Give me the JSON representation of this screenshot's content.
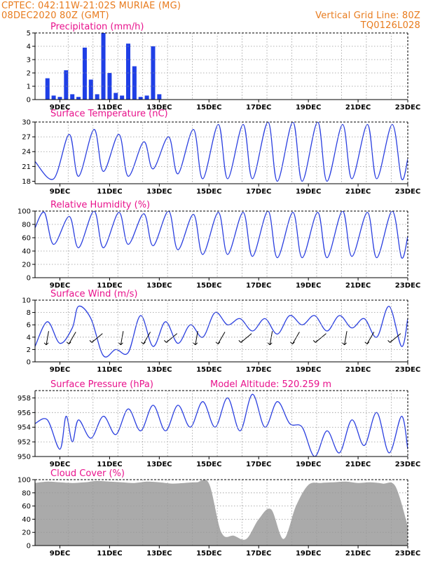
{
  "header": {
    "left_line1": "CPTEC:   042:11W-21:02S   MURIAE (MG)",
    "left_line2": "08DEC2020 80Z (GMT)",
    "right_line1": "Vertical Grid Line: 80Z",
    "right_line2": "TQ0126L028"
  },
  "colors": {
    "line": "#2a3fe0",
    "bar": "#1f3fe6",
    "cloud": "#aaaaaa",
    "title": "#e8128c",
    "header": "#e87b1d"
  },
  "chart_data": [
    {
      "type": "bar",
      "title": "Precipitation (mm/h)",
      "ylim": [
        0,
        5
      ],
      "yticks": [
        "0",
        "1",
        "2",
        "3",
        "4",
        "5"
      ],
      "xticks": [
        "9DEC",
        "11DEC",
        "13DEC",
        "15DEC",
        "17DEC",
        "19DEC",
        "21DEC",
        "23DEC"
      ],
      "x": [
        "08DEC 12Z",
        "08DEC 18Z",
        "09DEC 00Z",
        "09DEC 06Z",
        "09DEC 12Z",
        "09DEC 18Z",
        "10DEC 00Z",
        "10DEC 06Z",
        "10DEC 12Z",
        "10DEC 18Z",
        "11DEC 00Z",
        "11DEC 06Z",
        "11DEC 12Z",
        "11DEC 18Z",
        "12DEC 00Z",
        "12DEC 06Z",
        "12DEC 12Z",
        "12DEC 18Z",
        "13DEC 00Z",
        "13DEC 06Z"
      ],
      "values": [
        1.6,
        0.3,
        0.2,
        2.2,
        0.4,
        0.2,
        3.9,
        1.5,
        0.4,
        5.0,
        2.0,
        0.5,
        0.3,
        4.2,
        2.5,
        0.2,
        0.3,
        4.0,
        0.4,
        0.0
      ]
    },
    {
      "type": "line",
      "title": "Surface Temperature (nC)",
      "ylim": [
        17.5,
        30
      ],
      "yticks": [
        "18",
        "21",
        "24",
        "27",
        "30"
      ],
      "xticks": [
        "9DEC",
        "11DEC",
        "13DEC",
        "15DEC",
        "17DEC",
        "19DEC",
        "21DEC",
        "23DEC"
      ],
      "x": [
        "08DEC 00Z",
        "08DEC 18Z",
        "09DEC 09Z",
        "09DEC 18Z",
        "10DEC 09Z",
        "10DEC 18Z",
        "11DEC 09Z",
        "11DEC 18Z",
        "12DEC 09Z",
        "12DEC 18Z",
        "13DEC 09Z",
        "13DEC 18Z",
        "14DEC 09Z",
        "14DEC 18Z",
        "15DEC 09Z",
        "15DEC 18Z",
        "16DEC 09Z",
        "16DEC 18Z",
        "17DEC 09Z",
        "17DEC 18Z",
        "18DEC 09Z",
        "18DEC 18Z",
        "19DEC 09Z",
        "19DEC 18Z",
        "20DEC 09Z",
        "20DEC 18Z",
        "21DEC 09Z",
        "21DEC 18Z",
        "22DEC 09Z",
        "22DEC 18Z",
        "23DEC 00Z"
      ],
      "values": [
        22.0,
        18.5,
        27.5,
        19.0,
        28.5,
        20.0,
        27.5,
        19.0,
        26.0,
        20.5,
        27.0,
        19.5,
        28.5,
        18.5,
        29.5,
        18.5,
        29.5,
        18.5,
        30.0,
        18.0,
        30.0,
        18.0,
        30.0,
        18.0,
        29.5,
        18.5,
        29.5,
        18.5,
        29.5,
        18.5,
        22.5
      ]
    },
    {
      "type": "line",
      "title": "Relative Humidity (%)",
      "ylim": [
        0,
        100
      ],
      "yticks": [
        "0",
        "20",
        "40",
        "60",
        "80",
        "100"
      ],
      "xticks": [
        "9DEC",
        "11DEC",
        "13DEC",
        "15DEC",
        "17DEC",
        "19DEC",
        "21DEC",
        "23DEC"
      ],
      "x": [
        "08DEC 00Z",
        "08DEC 09Z",
        "08DEC 18Z",
        "09DEC 09Z",
        "09DEC 18Z",
        "10DEC 09Z",
        "10DEC 18Z",
        "11DEC 09Z",
        "11DEC 18Z",
        "12DEC 09Z",
        "12DEC 18Z",
        "13DEC 09Z",
        "13DEC 18Z",
        "14DEC 09Z",
        "14DEC 18Z",
        "15DEC 09Z",
        "15DEC 18Z",
        "16DEC 09Z",
        "16DEC 18Z",
        "17DEC 09Z",
        "17DEC 18Z",
        "18DEC 09Z",
        "18DEC 18Z",
        "19DEC 09Z",
        "19DEC 18Z",
        "20DEC 09Z",
        "20DEC 18Z",
        "21DEC 09Z",
        "21DEC 18Z",
        "22DEC 09Z",
        "22DEC 18Z",
        "23DEC 00Z"
      ],
      "values": [
        75,
        98,
        50,
        92,
        45,
        100,
        45,
        98,
        50,
        96,
        48,
        100,
        42,
        95,
        35,
        98,
        35,
        98,
        32,
        100,
        30,
        98,
        30,
        98,
        30,
        100,
        32,
        98,
        30,
        100,
        30,
        62
      ]
    },
    {
      "type": "line",
      "title": "Surface Wind (m/s)",
      "ylim": [
        0,
        10
      ],
      "yticks": [
        "0",
        "2",
        "4",
        "6",
        "8",
        "10"
      ],
      "xticks": [
        "9DEC",
        "11DEC",
        "13DEC",
        "15DEC",
        "17DEC",
        "19DEC",
        "21DEC",
        "23DEC"
      ],
      "x": [
        "08DEC 00Z",
        "08DEC 12Z",
        "09DEC 00Z",
        "09DEC 12Z",
        "09DEC 18Z",
        "10DEC 06Z",
        "10DEC 18Z",
        "11DEC 06Z",
        "11DEC 18Z",
        "12DEC 06Z",
        "12DEC 18Z",
        "13DEC 06Z",
        "13DEC 18Z",
        "14DEC 06Z",
        "14DEC 18Z",
        "15DEC 06Z",
        "15DEC 18Z",
        "16DEC 06Z",
        "16DEC 18Z",
        "17DEC 06Z",
        "17DEC 18Z",
        "18DEC 06Z",
        "18DEC 18Z",
        "19DEC 06Z",
        "19DEC 18Z",
        "20DEC 06Z",
        "20DEC 18Z",
        "21DEC 06Z",
        "21DEC 18Z",
        "22DEC 06Z",
        "22DEC 18Z",
        "23DEC 00Z"
      ],
      "values": [
        2.5,
        6.5,
        3.0,
        5.5,
        9.0,
        7.0,
        1.0,
        2.0,
        1.5,
        7.5,
        2.5,
        6.5,
        3.0,
        6.0,
        4.0,
        8.0,
        6.0,
        7.0,
        5.0,
        7.0,
        4.5,
        7.5,
        6.0,
        7.5,
        5.0,
        7.5,
        5.5,
        7.0,
        4.0,
        9.0,
        2.5,
        7.0
      ]
    },
    {
      "type": "line",
      "title": "Surface Pressure (hPa)",
      "subtitle": "Model Altitude: 520.259 m",
      "ylim": [
        950,
        959
      ],
      "yticks": [
        "950",
        "952",
        "954",
        "956",
        "958"
      ],
      "xticks": [
        "9DEC",
        "11DEC",
        "13DEC",
        "15DEC",
        "17DEC",
        "19DEC",
        "21DEC",
        "23DEC"
      ],
      "x": [
        "08DEC 00Z",
        "08DEC 12Z",
        "09DEC 00Z",
        "09DEC 06Z",
        "09DEC 12Z",
        "09DEC 18Z",
        "10DEC 06Z",
        "10DEC 18Z",
        "11DEC 06Z",
        "11DEC 18Z",
        "12DEC 06Z",
        "12DEC 18Z",
        "13DEC 06Z",
        "13DEC 18Z",
        "14DEC 06Z",
        "14DEC 18Z",
        "15DEC 06Z",
        "15DEC 18Z",
        "16DEC 06Z",
        "16DEC 18Z",
        "17DEC 06Z",
        "17DEC 18Z",
        "18DEC 06Z",
        "18DEC 18Z",
        "19DEC 06Z",
        "19DEC 18Z",
        "20DEC 06Z",
        "20DEC 18Z",
        "21DEC 06Z",
        "21DEC 18Z",
        "22DEC 06Z",
        "22DEC 18Z",
        "23DEC 00Z"
      ],
      "values": [
        954.5,
        955.0,
        951.0,
        955.5,
        952.0,
        955.0,
        952.5,
        955.5,
        953.0,
        956.5,
        953.5,
        957.0,
        953.5,
        957.0,
        954.0,
        957.5,
        954.0,
        958.0,
        953.5,
        958.5,
        954.0,
        957.5,
        954.5,
        954.0,
        950.0,
        953.5,
        950.5,
        955.0,
        951.5,
        956.0,
        950.5,
        955.5,
        951.0
      ]
    },
    {
      "type": "area",
      "title": "Cloud Cover (%)",
      "ylim": [
        0,
        100
      ],
      "yticks": [
        "0",
        "20",
        "40",
        "60",
        "80",
        "100"
      ],
      "xticks": [
        "9DEC",
        "11DEC",
        "13DEC",
        "15DEC",
        "17DEC",
        "19DEC",
        "21DEC",
        "23DEC"
      ],
      "x": [
        "08DEC 00Z",
        "08DEC 12Z",
        "09DEC 00Z",
        "09DEC 12Z",
        "10DEC 00Z",
        "10DEC 12Z",
        "11DEC 00Z",
        "11DEC 12Z",
        "12DEC 00Z",
        "12DEC 12Z",
        "13DEC 00Z",
        "13DEC 12Z",
        "14DEC 00Z",
        "14DEC 12Z",
        "15DEC 00Z",
        "15DEC 12Z",
        "16DEC 00Z",
        "16DEC 12Z",
        "17DEC 00Z",
        "17DEC 12Z",
        "18DEC 00Z",
        "18DEC 12Z",
        "19DEC 00Z",
        "19DEC 12Z",
        "20DEC 00Z",
        "20DEC 12Z",
        "21DEC 00Z",
        "21DEC 12Z",
        "22DEC 00Z",
        "22DEC 12Z",
        "23DEC 00Z"
      ],
      "values": [
        95,
        97,
        96,
        95,
        96,
        98,
        97,
        96,
        95,
        97,
        96,
        94,
        95,
        96,
        94,
        20,
        15,
        10,
        40,
        55,
        10,
        60,
        92,
        95,
        96,
        97,
        95,
        96,
        94,
        90,
        30
      ]
    }
  ]
}
